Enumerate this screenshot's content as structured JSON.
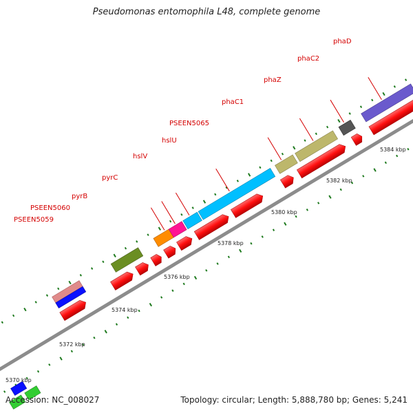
{
  "title": "Pseudomonas entomophila L48, complete genome",
  "footer": {
    "accession": "Accession: NC_008027",
    "topology": "Topology: circular; Length: 5,888,780 bp; Genes: 5,241"
  },
  "colors": {
    "backbone": "#8c8c8c",
    "gene_forward_red": "#ff1010",
    "label_red": "#d40000",
    "tick_green": "#1e7a1e"
  },
  "scale_labels": [
    "5370 kbp",
    "5372 kbp",
    "5374 kbp",
    "5376 kbp",
    "5378 kbp",
    "5380 kbp",
    "5382 kbp",
    "5384 kbp"
  ],
  "genes": [
    {
      "name": "PSEEN5059",
      "color": "#ff8c00"
    },
    {
      "name": "PSEEN5060",
      "color": "#ff1493"
    },
    {
      "name": "pyrB",
      "color": "#00bfff"
    },
    {
      "name": "pyrC",
      "color": "#00bfff"
    },
    {
      "name": "hslV",
      "color": "#bdb76b"
    },
    {
      "name": "hslU",
      "color": "#bdb76b"
    },
    {
      "name": "PSEEN5065",
      "color": "#555555"
    },
    {
      "name": "phaC1",
      "color": "#6a5acd"
    },
    {
      "name": "phaZ",
      "color": "#6a5acd"
    },
    {
      "name": "phaC2",
      "color": "#6a5acd"
    },
    {
      "name": "phaD",
      "color": "#6a5acd"
    }
  ]
}
